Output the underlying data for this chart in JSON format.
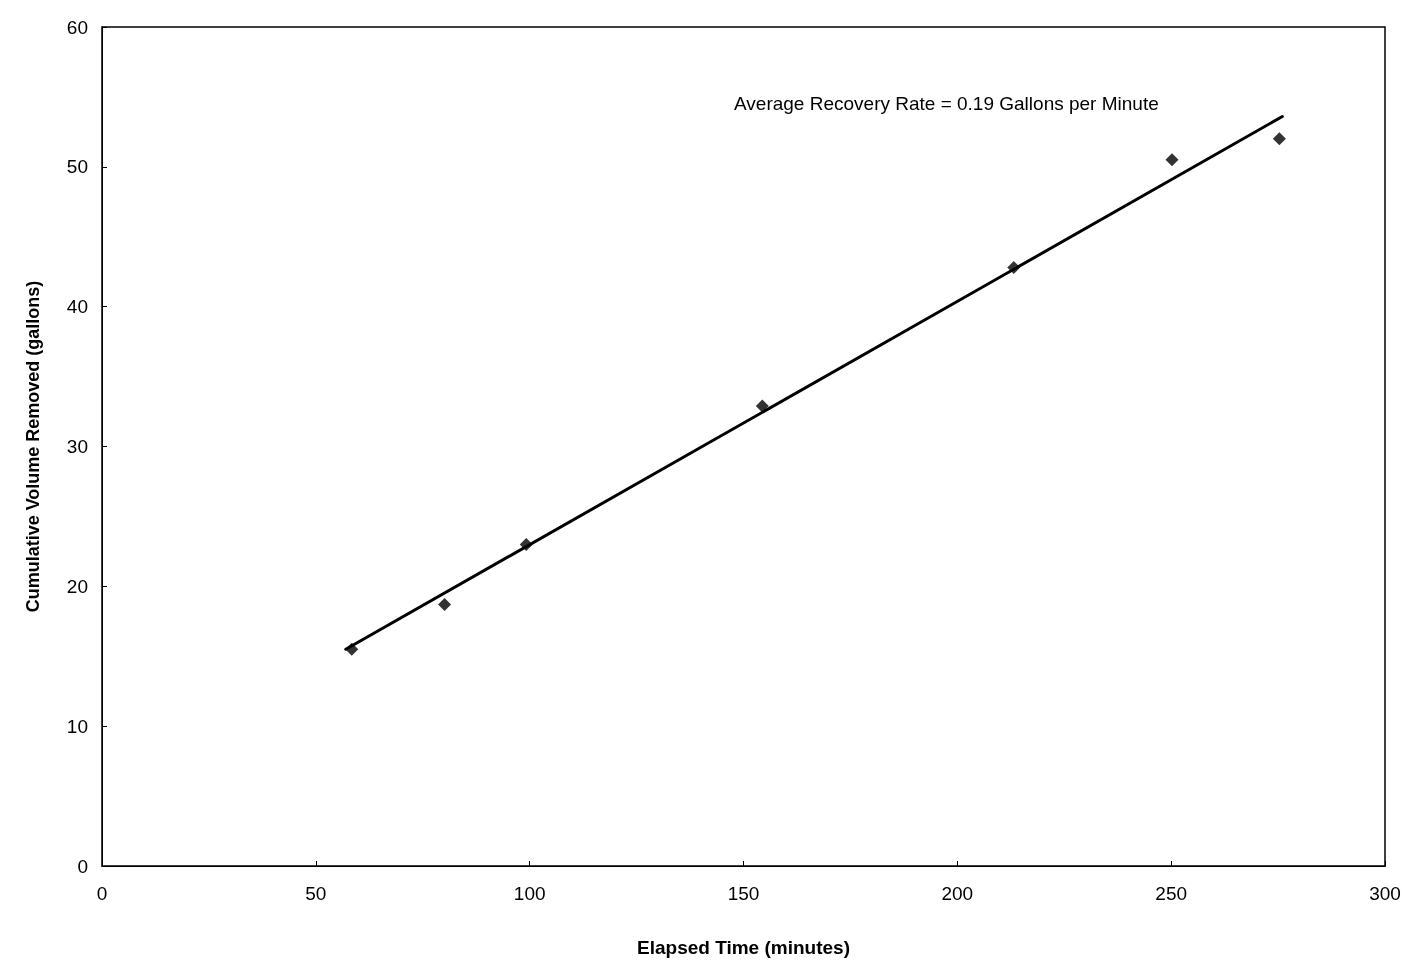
{
  "chart_data": {
    "type": "scatter",
    "xlabel": "Elapsed Time (minutes)",
    "ylabel": "Cumulative Volume Removed (gallons)",
    "xlim": [
      0,
      300
    ],
    "xticks": [
      0,
      50,
      100,
      150,
      200,
      250,
      300
    ],
    "ylim": [
      0,
      60
    ],
    "yticks": [
      0,
      10,
      20,
      30,
      40,
      50,
      60
    ],
    "grid": false,
    "marker": "diamond",
    "series": [
      {
        "color": "#000000",
        "x": [
          58.4,
          80.1,
          99.2,
          154.4,
          213.2,
          250.2,
          275.3
        ],
        "values": [
          15.5,
          18.7,
          23.0,
          32.9,
          42.8,
          50.5,
          52.0
        ]
      },
      {
        "type": "line",
        "color": "#000000",
        "line_style": "solid",
        "marker": "none",
        "x": [
          57,
          276
        ],
        "values": [
          15.5,
          53.6
        ]
      }
    ],
    "annotations": [
      "Average Recovery Rate = 0.19 Gallons per Minute"
    ]
  }
}
